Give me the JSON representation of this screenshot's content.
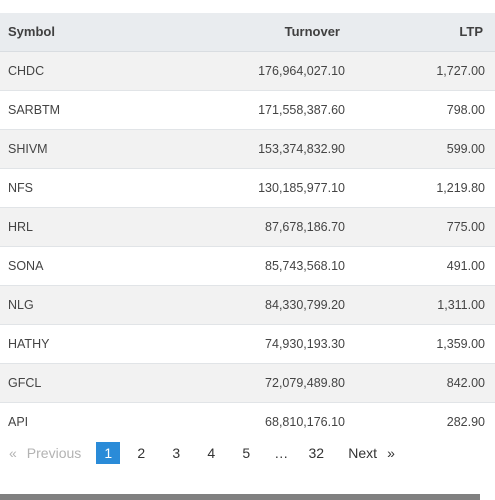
{
  "table": {
    "headers": {
      "symbol": "Symbol",
      "turnover": "Turnover",
      "ltp": "LTP"
    },
    "rows": [
      {
        "symbol": "CHDC",
        "turnover": "176,964,027.10",
        "ltp": "1,727.00"
      },
      {
        "symbol": "SARBTM",
        "turnover": "171,558,387.60",
        "ltp": "798.00"
      },
      {
        "symbol": "SHIVM",
        "turnover": "153,374,832.90",
        "ltp": "599.00"
      },
      {
        "symbol": "NFS",
        "turnover": "130,185,977.10",
        "ltp": "1,219.80"
      },
      {
        "symbol": "HRL",
        "turnover": "87,678,186.70",
        "ltp": "775.00"
      },
      {
        "symbol": "SONA",
        "turnover": "85,743,568.10",
        "ltp": "491.00"
      },
      {
        "symbol": "NLG",
        "turnover": "84,330,799.20",
        "ltp": "1,311.00"
      },
      {
        "symbol": "HATHY",
        "turnover": "74,930,193.30",
        "ltp": "1,359.00"
      },
      {
        "symbol": "GFCL",
        "turnover": "72,079,489.80",
        "ltp": "842.00"
      },
      {
        "symbol": "API",
        "turnover": "68,810,176.10",
        "ltp": "282.90"
      }
    ]
  },
  "pagination": {
    "prev_arrow": "«",
    "prev_label": "Previous",
    "pages": [
      "1",
      "2",
      "3",
      "4",
      "5"
    ],
    "ellipsis": "…",
    "last_page": "32",
    "next_label": "Next",
    "next_arrow": "»",
    "current_page": "1",
    "active_color": "#2a8bd8"
  }
}
